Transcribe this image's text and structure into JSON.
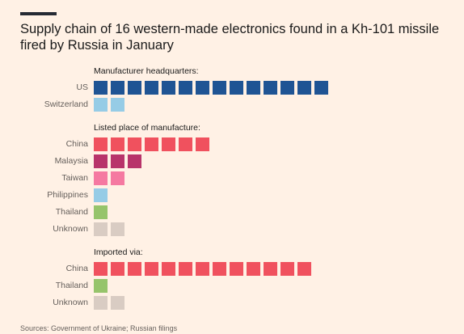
{
  "title": "Supply chain of 16 western-made electronics found in a Kh-101 missile fired by Russia in January",
  "source": "Sources: Government of Ukraine; Russian filings",
  "chart_data": {
    "type": "unit",
    "unit": "component",
    "sections": [
      {
        "title": "Manufacturer headquarters:",
        "rows": [
          {
            "label": "US",
            "value": 14,
            "color": "#1f5494"
          },
          {
            "label": "Switzerland",
            "value": 2,
            "color": "#96cce6"
          }
        ]
      },
      {
        "title": "Listed place of manufacture:",
        "rows": [
          {
            "label": "China",
            "value": 7,
            "color": "#f0515e"
          },
          {
            "label": "Malaysia",
            "value": 3,
            "color": "#b8336a"
          },
          {
            "label": "Taiwan",
            "value": 2,
            "color": "#f579a1"
          },
          {
            "label": "Philippines",
            "value": 1,
            "color": "#96cce6"
          },
          {
            "label": "Thailand",
            "value": 1,
            "color": "#96c46b"
          },
          {
            "label": "Unknown",
            "value": 2,
            "color": "#d9ccc3"
          }
        ]
      },
      {
        "title": "Imported via:",
        "rows": [
          {
            "label": "China",
            "value": 13,
            "color": "#f0515e"
          },
          {
            "label": "Thailand",
            "value": 1,
            "color": "#96c46b"
          },
          {
            "label": "Unknown",
            "value": 2,
            "color": "#d9ccc3"
          }
        ]
      }
    ]
  }
}
